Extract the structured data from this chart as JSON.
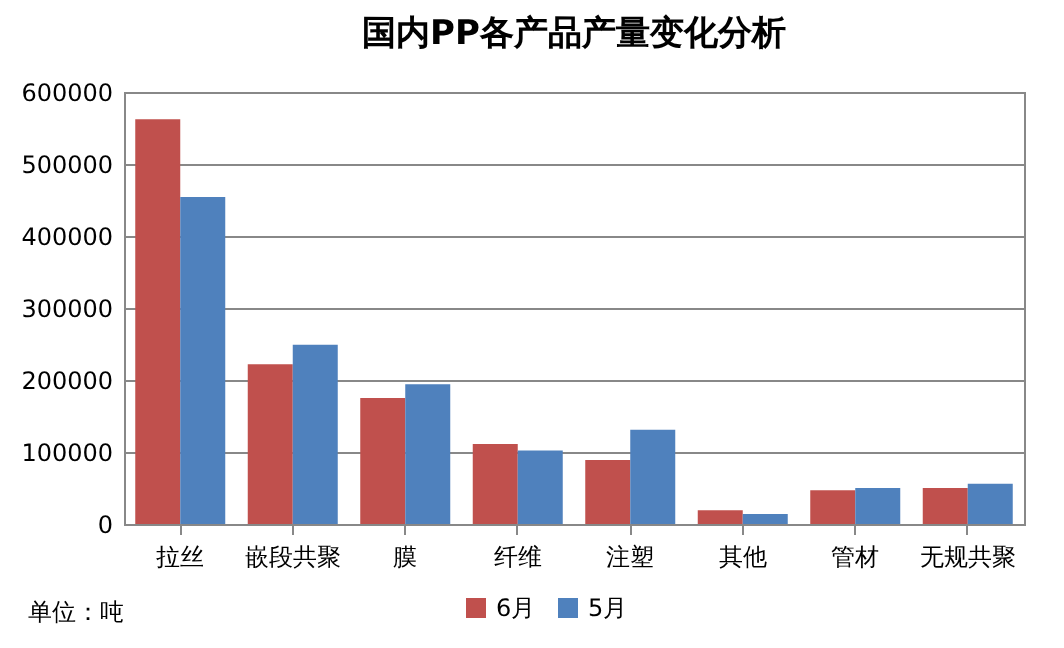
{
  "chart_data": {
    "type": "bar",
    "title": "国内PP各产品产量变化分析",
    "categories": [
      "拉丝",
      "嵌段共聚",
      "膜",
      "纤维",
      "注塑",
      "其他",
      "管材",
      "无规共聚"
    ],
    "series": [
      {
        "name": "6月",
        "color": "#c0504d",
        "values": [
          562000,
          222000,
          175000,
          111000,
          89000,
          19000,
          47000,
          50000
        ]
      },
      {
        "name": "5月",
        "color": "#4f81bd",
        "values": [
          454000,
          249000,
          194000,
          102000,
          131000,
          14000,
          50000,
          56000
        ]
      }
    ],
    "ylim": [
      0,
      600000
    ],
    "yticks": [
      0,
      100000,
      200000,
      300000,
      400000,
      500000,
      600000
    ],
    "grid": "y",
    "legend": "bottom",
    "annotations": [
      "单位：吨"
    ]
  }
}
